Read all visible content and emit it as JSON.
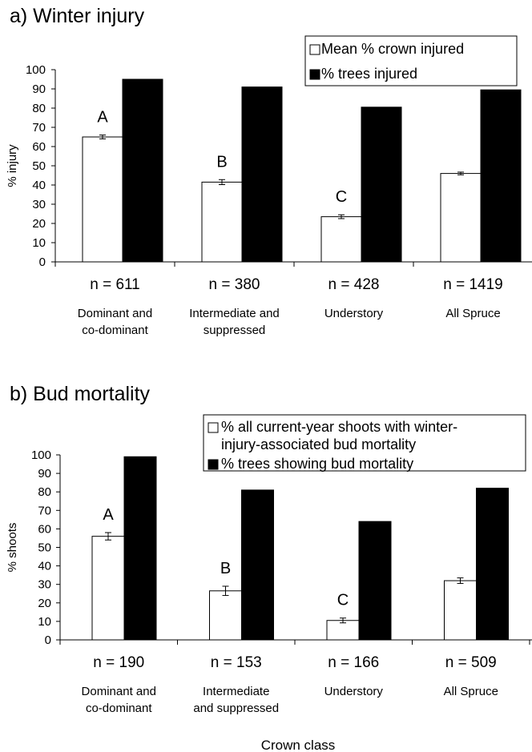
{
  "chart_data": [
    {
      "type": "bar",
      "title": "a) Winter injury",
      "ylabel": "% injury",
      "ylim": [
        0,
        100
      ],
      "yticks": [
        0,
        10,
        20,
        30,
        40,
        50,
        60,
        70,
        80,
        90,
        100
      ],
      "categories": [
        {
          "n": "n = 611",
          "label": [
            "Dominant and",
            "co-dominant"
          ]
        },
        {
          "n": "n = 380",
          "label": [
            "Intermediate and",
            "suppressed"
          ]
        },
        {
          "n": "n = 428",
          "label": [
            "Understory"
          ]
        },
        {
          "n": "n = 1419",
          "label": [
            "All Spruce"
          ]
        }
      ],
      "series": [
        {
          "name": "Mean % crown injured",
          "color": "#ffffff",
          "values": [
            65,
            41.5,
            23.5,
            46
          ],
          "errors": [
            1,
            1.3,
            1,
            0.7
          ]
        },
        {
          "name": "% trees injured",
          "color": "#000000",
          "values": [
            95,
            91,
            80.5,
            89.5
          ]
        }
      ],
      "annotations": [
        "A",
        "B",
        "C",
        ""
      ],
      "legend": {
        "position": "top-right",
        "lines": [
          [
            "Mean % crown injured"
          ],
          [
            "% trees injured"
          ]
        ]
      },
      "grid": false
    },
    {
      "type": "bar",
      "title": "b) Bud mortality",
      "ylabel": "% shoots",
      "ylim": [
        0,
        100
      ],
      "yticks": [
        0,
        10,
        20,
        30,
        40,
        50,
        60,
        70,
        80,
        90,
        100
      ],
      "categories": [
        {
          "n": "n = 190",
          "label": [
            "Dominant and",
            "co-dominant"
          ]
        },
        {
          "n": "n = 153",
          "label": [
            "Intermediate",
            "and suppressed"
          ]
        },
        {
          "n": "n = 166",
          "label": [
            "Understory"
          ]
        },
        {
          "n": "n = 509",
          "label": [
            "All Spruce"
          ]
        }
      ],
      "series": [
        {
          "name": "% all current-year shoots with winter-injury-associated bud mortality",
          "color": "#ffffff",
          "values": [
            56,
            26.5,
            10.5,
            32
          ],
          "errors": [
            2,
            2.5,
            1.3,
            1.5
          ]
        },
        {
          "name": "% trees showing bud mortality",
          "color": "#000000",
          "values": [
            99,
            81,
            64,
            82
          ]
        }
      ],
      "annotations": [
        "A",
        "B",
        "C",
        ""
      ],
      "legend": {
        "position": "top-right",
        "lines": [
          [
            "% all current-year shoots with winter-",
            "injury-associated bud mortality"
          ],
          [
            "% trees showing bud mortality"
          ]
        ]
      },
      "xlabel": "Crown class",
      "grid": false
    }
  ]
}
